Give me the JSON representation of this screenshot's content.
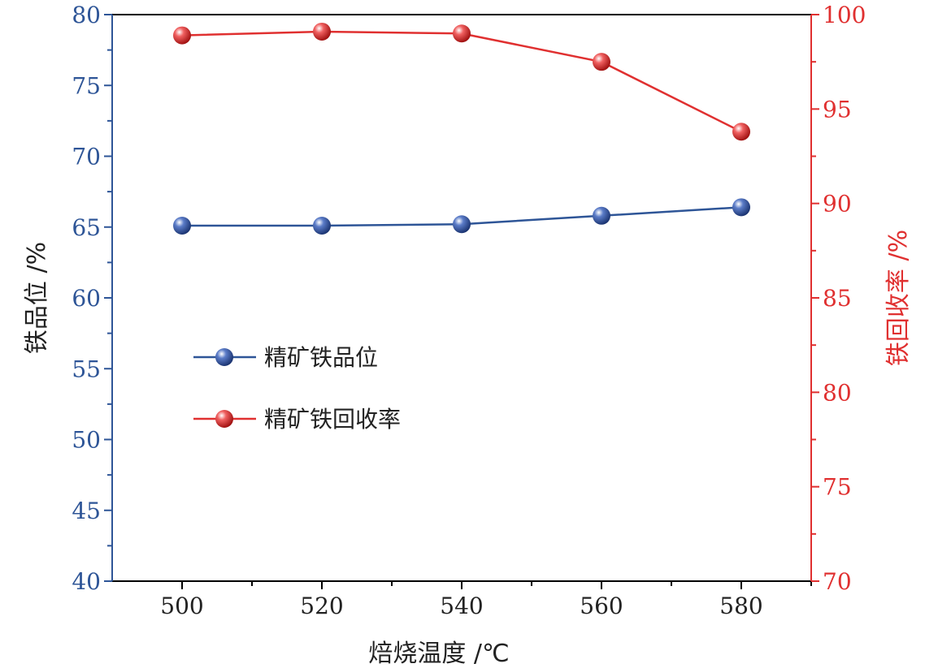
{
  "chart_data": {
    "type": "line",
    "x": [
      500,
      520,
      540,
      560,
      580
    ],
    "xlabel": "焙烧温度 /℃",
    "xlim": [
      490,
      590
    ],
    "xticks": [
      500,
      520,
      540,
      560,
      580
    ],
    "y_left": {
      "label": "铁品位 /%",
      "lim": [
        40,
        80
      ],
      "ticks": [
        40,
        45,
        50,
        55,
        60,
        65,
        70,
        75,
        80
      ],
      "color": "#2e5597"
    },
    "y_right": {
      "label": "铁回收率 /%",
      "lim": [
        70,
        100
      ],
      "ticks": [
        70,
        75,
        80,
        85,
        90,
        95,
        100
      ],
      "color": "#e03030"
    },
    "series": [
      {
        "name": "精矿铁品位",
        "axis": "left",
        "color": "#2e5597",
        "values": [
          65.1,
          65.1,
          65.2,
          65.8,
          66.4
        ]
      },
      {
        "name": "精矿铁回收率",
        "axis": "right",
        "color": "#e03030",
        "values": [
          98.9,
          99.1,
          99.0,
          97.5,
          93.8
        ]
      }
    ],
    "legend_position": "center-left",
    "grid": false
  }
}
